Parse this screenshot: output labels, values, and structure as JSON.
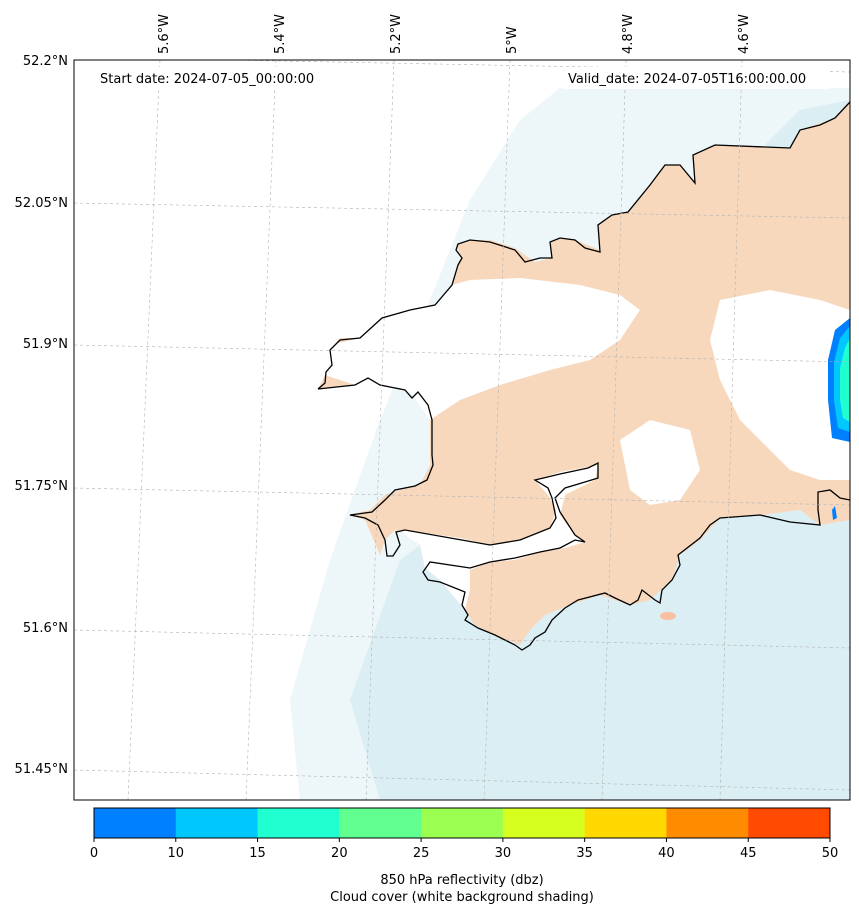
{
  "header": {
    "start_date": "Start date: 2024-07-05_00:00:00",
    "valid_date": "Valid_date: 2024-07-05T16:00:00.00"
  },
  "lat_labels": [
    "52.2°N",
    "52.05°N",
    "51.9°N",
    "51.75°N",
    "51.6°N",
    "51.45°N"
  ],
  "lon_labels": [
    "5.6°W",
    "5.4°W",
    "5.2°W",
    "5°W",
    "4.8°W",
    "4.6°W"
  ],
  "colorbar": {
    "ticks": [
      "0",
      "10",
      "15",
      "20",
      "25",
      "30",
      "35",
      "40",
      "45",
      "50"
    ],
    "colors": [
      "#0080ff",
      "#00c8ff",
      "#20ffd0",
      "#60ff90",
      "#9aff50",
      "#d6ff20",
      "#ffd800",
      "#ff8c00",
      "#ff4a00"
    ],
    "label_line1": "850 hPa reflectivity (dbz)",
    "label_line2": "Cloud cover (white background shading)"
  },
  "colors": {
    "land": "#f8d8bc",
    "sea": "#dbeef3",
    "coastline": "#000000"
  }
}
